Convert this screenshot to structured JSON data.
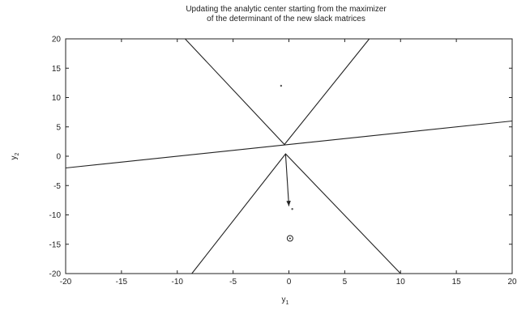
{
  "chart_data": {
    "type": "line",
    "title": [
      "Updating the analytic center starting from the maximizer",
      "of the determinant of the new slack matrices"
    ],
    "xlabel": "y",
    "xlabel_sub": "1",
    "ylabel": "y",
    "ylabel_sub": "2",
    "xlim": [
      -20,
      20
    ],
    "ylim": [
      -20,
      20
    ],
    "xticks": [
      -20,
      -15,
      -10,
      -5,
      0,
      5,
      10,
      15,
      20
    ],
    "yticks": [
      -20,
      -15,
      -10,
      -5,
      0,
      5,
      10,
      15,
      20
    ],
    "grid": false,
    "series": [
      {
        "points": [
          [
            -20,
            -2
          ],
          [
            20,
            6
          ]
        ]
      },
      {
        "points": [
          [
            -9.3,
            20
          ],
          [
            -0.4,
            2.0
          ],
          [
            7.2,
            20
          ]
        ]
      },
      {
        "points": [
          [
            -8.7,
            -20
          ],
          [
            -0.3,
            0.4
          ],
          [
            10.0,
            -20
          ]
        ]
      }
    ],
    "arrow": {
      "from": [
        -0.3,
        0.4
      ],
      "to": [
        0.0,
        -8.5
      ]
    },
    "markers": [
      {
        "x": 0.3,
        "y": -9,
        "symbol": "dot"
      },
      {
        "x": 0.1,
        "y": -14,
        "symbol": "circle-dot"
      },
      {
        "x": -0.7,
        "y": 12,
        "symbol": "dot"
      }
    ]
  }
}
